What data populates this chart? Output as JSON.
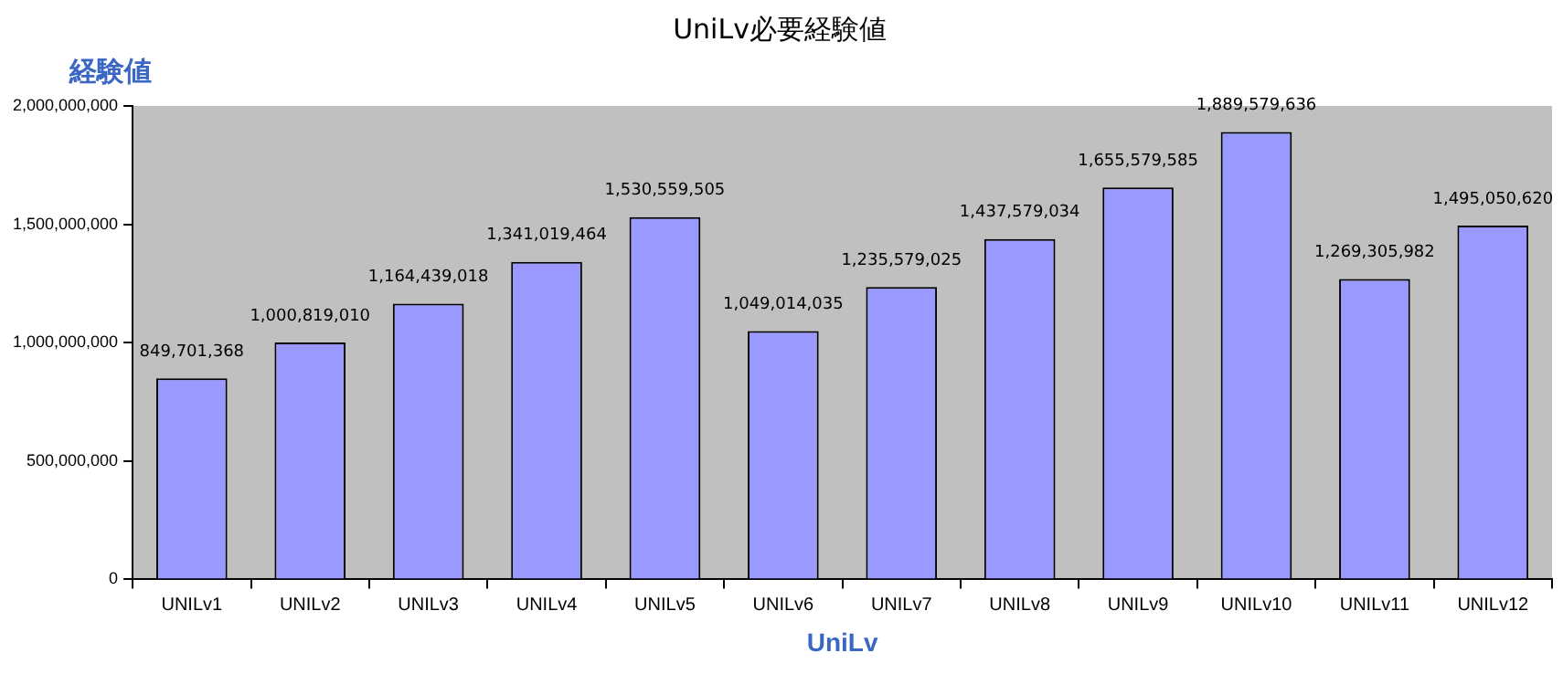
{
  "chart_data": {
    "type": "bar",
    "title": "UniLv必要経験値",
    "xlabel": "UniLv",
    "ylabel": "経験値",
    "categories": [
      "UNILv1",
      "UNILv2",
      "UNILv3",
      "UNILv4",
      "UNILv5",
      "UNILv6",
      "UNILv7",
      "UNILv8",
      "UNILv9",
      "UNILv10",
      "UNILv11",
      "UNILv12"
    ],
    "values": [
      849701368,
      1000819010,
      1164439018,
      1341019464,
      1530559505,
      1049014035,
      1235579025,
      1437579034,
      1655579585,
      1889579636,
      1269305982,
      1495050620
    ],
    "value_labels": [
      "849,701,368",
      "1,000,819,010",
      "1,164,439,018",
      "1,341,019,464",
      "1,530,559,505",
      "1,049,014,035",
      "1,235,579,025",
      "1,437,579,034",
      "1,655,579,585",
      "1,889,579,636",
      "1,269,305,982",
      "1,495,050,620"
    ],
    "color": "#9999ff",
    "ylim": [
      0,
      2000000000
    ],
    "yticks": [
      0,
      {
        "value": 500000000,
        "label": "500,000,000"
      },
      {
        "value": 1000000000,
        "label": "1,000,000,000"
      },
      {
        "value": 1500000000,
        "label": "1,500,000,000"
      },
      {
        "value": 2000000000,
        "label": "2,000,000,000"
      }
    ],
    "grid": false,
    "legend": false
  }
}
